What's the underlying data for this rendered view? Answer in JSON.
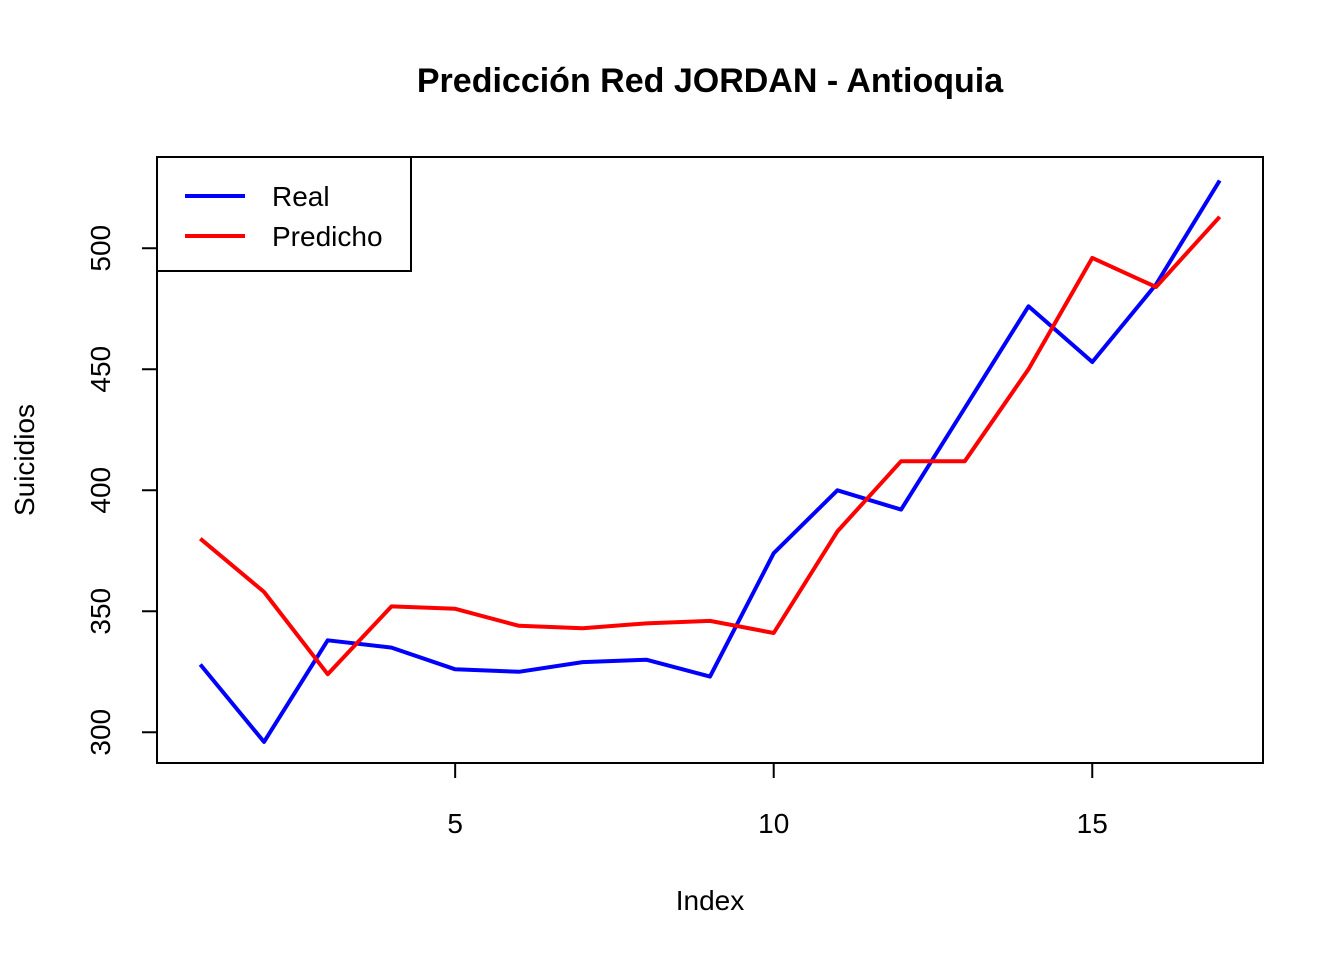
{
  "chart_data": {
    "type": "line",
    "title": "Predicción Red JORDAN - Antioquia",
    "xlabel": "Index",
    "ylabel": "Suicidios",
    "x": [
      1,
      2,
      3,
      4,
      5,
      6,
      7,
      8,
      9,
      10,
      11,
      12,
      13,
      14,
      15,
      16,
      17
    ],
    "xlim": [
      0.32,
      17.68
    ],
    "ylim": [
      287.3,
      537.7
    ],
    "x_ticks": [
      5,
      10,
      15
    ],
    "y_ticks": [
      300,
      350,
      400,
      450,
      500
    ],
    "grid": false,
    "legend_position": "top-left",
    "series": [
      {
        "name": "Real",
        "color": "#0000ff",
        "values": [
          328,
          296,
          338,
          335,
          326,
          325,
          329,
          330,
          323,
          374,
          400,
          392,
          434,
          476,
          453,
          485,
          528
        ]
      },
      {
        "name": "Predicho",
        "color": "#ff0000",
        "values": [
          380,
          358,
          324,
          352,
          351,
          344,
          343,
          345,
          346,
          341,
          383,
          412,
          412,
          450,
          496,
          484,
          513
        ]
      }
    ]
  }
}
